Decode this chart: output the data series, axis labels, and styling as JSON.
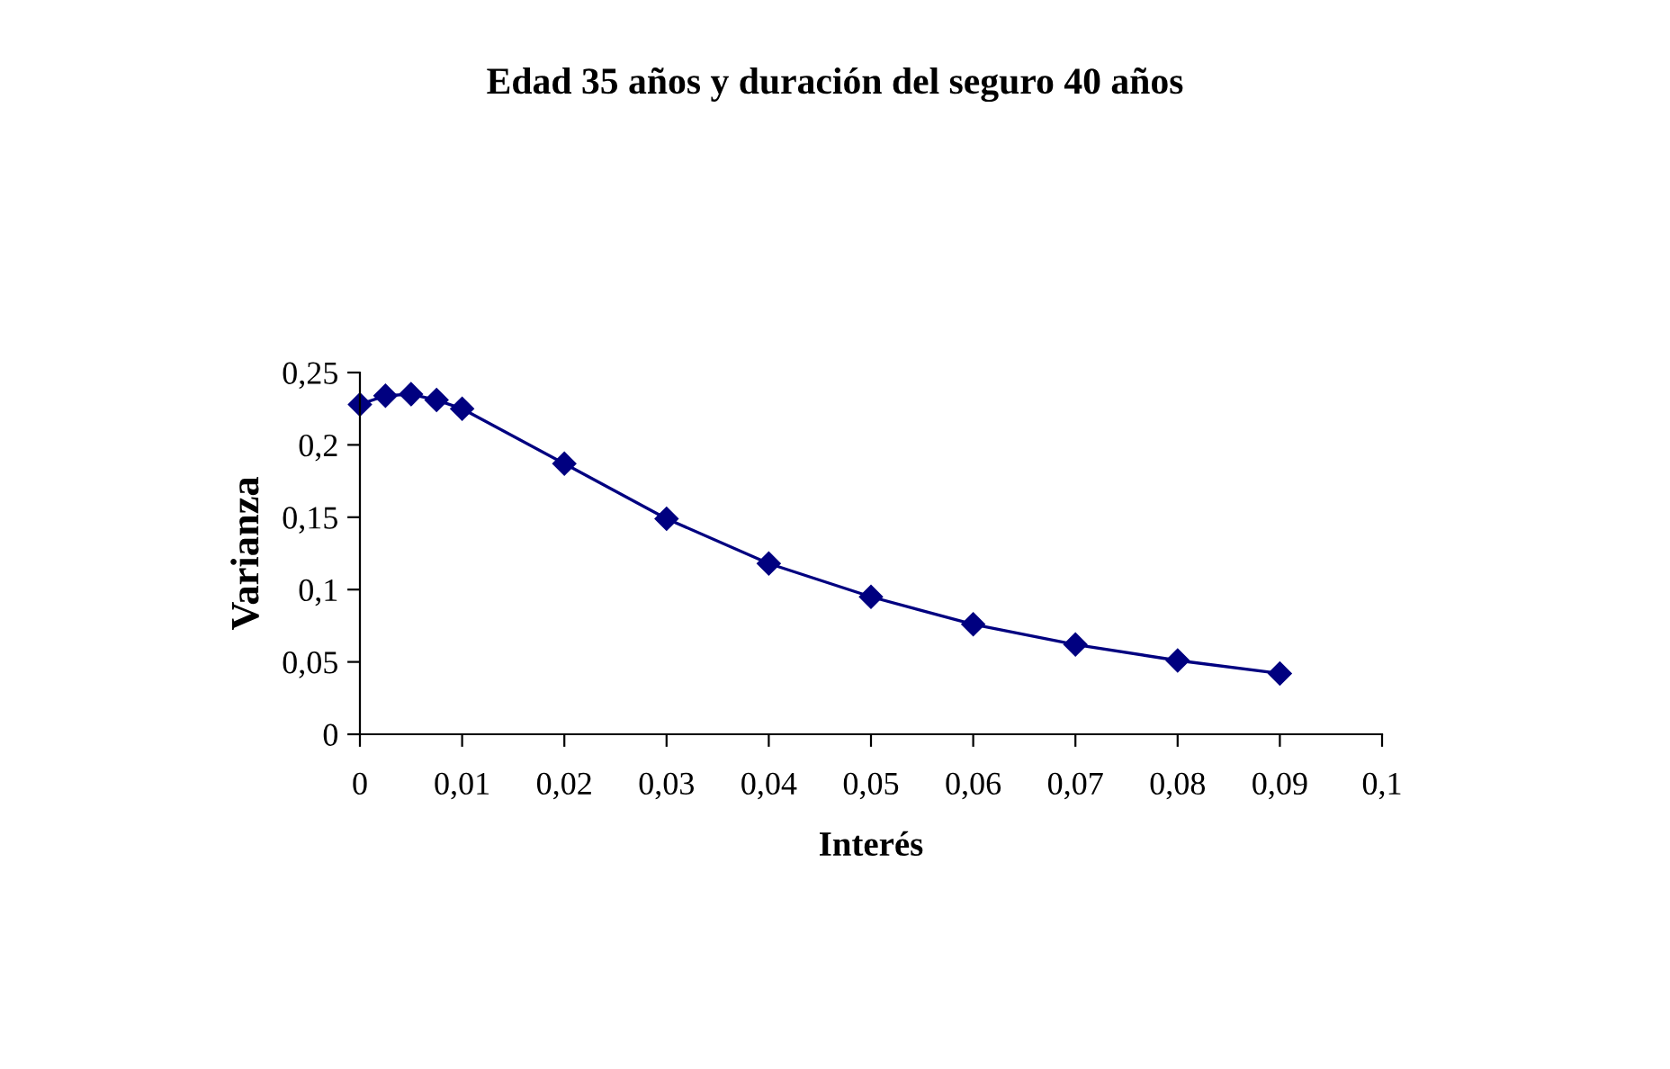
{
  "chart_data": {
    "type": "line",
    "title": "Edad 35 años y duración del seguro 40 años",
    "xlabel": "Interés",
    "ylabel": "Varianza",
    "x": [
      0,
      0.0025,
      0.005,
      0.0075,
      0.01,
      0.02,
      0.03,
      0.04,
      0.05,
      0.06,
      0.07,
      0.08,
      0.09
    ],
    "series": [
      {
        "color": "#000080",
        "values": [
          0.228,
          0.234,
          0.235,
          0.231,
          0.225,
          0.187,
          0.149,
          0.118,
          0.095,
          0.076,
          0.062,
          0.051,
          0.042
        ]
      }
    ],
    "xlim": [
      0,
      0.1
    ],
    "ylim": [
      0,
      0.25
    ],
    "xticks": [
      0,
      {
        "value": 0.01,
        "label": "0,01"
      },
      {
        "value": 0.02,
        "label": "0,02"
      },
      {
        "value": 0.03,
        "label": "0,03"
      },
      {
        "value": 0.04,
        "label": "0,04"
      },
      {
        "value": 0.05,
        "label": "0,05"
      },
      {
        "value": 0.06,
        "label": "0,06"
      },
      {
        "value": 0.07,
        "label": "0,07"
      },
      {
        "value": 0.08,
        "label": "0,08"
      },
      {
        "value": 0.09,
        "label": "0,09"
      },
      {
        "value": 0.1,
        "label": "0,1"
      }
    ],
    "yticks": [
      0,
      {
        "value": 0.05,
        "label": "0,05"
      },
      {
        "value": 0.1,
        "label": "0,1"
      },
      {
        "value": 0.15,
        "label": "0,15"
      },
      {
        "value": 0.2,
        "label": "0,2"
      },
      {
        "value": 0.25,
        "label": "0,25"
      }
    ],
    "marker": "diamond",
    "line_style": "solid",
    "grid": false,
    "legend": false
  }
}
